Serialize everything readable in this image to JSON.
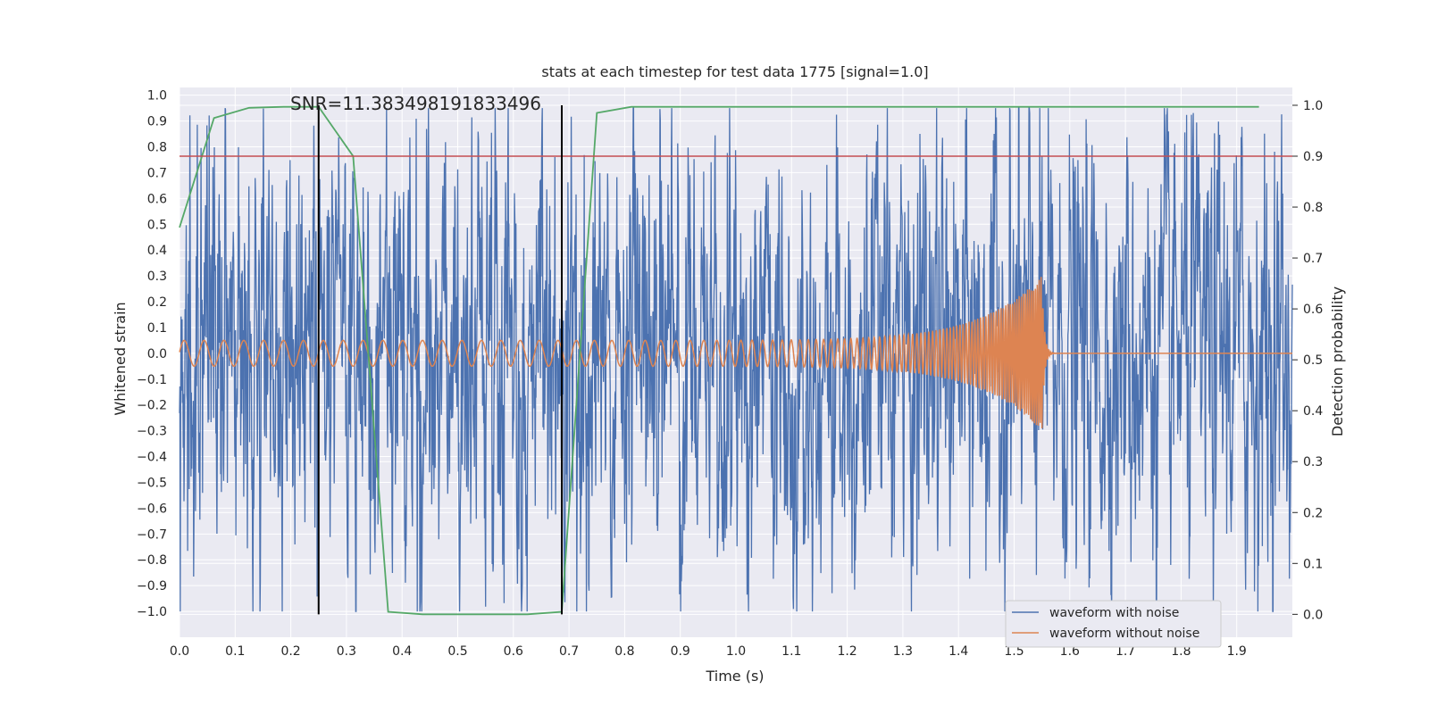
{
  "chart_data": {
    "type": "line",
    "title": "stats at each timestep for test data 1775 [signal=1.0]",
    "xlabel": "Time (s)",
    "ylabel": "Whitened strain",
    "y2label": "Detection probability",
    "xlim": [
      0.0,
      2.0
    ],
    "ylim": [
      -1.1,
      1.03
    ],
    "y2lim": [
      -0.045,
      1.035
    ],
    "xticks": [
      "0.0",
      "0.1",
      "0.2",
      "0.3",
      "0.4",
      "0.5",
      "0.6",
      "0.7",
      "0.8",
      "0.9",
      "1.0",
      "1.1",
      "1.2",
      "1.3",
      "1.4",
      "1.5",
      "1.6",
      "1.7",
      "1.8",
      "1.9"
    ],
    "yticks": [
      "1.0",
      "0.9",
      "0.8",
      "0.7",
      "0.6",
      "0.5",
      "0.4",
      "0.3",
      "0.2",
      "0.1",
      "0.0",
      "−0.1",
      "−0.2",
      "−0.3",
      "−0.4",
      "−0.5",
      "−0.6",
      "−0.7",
      "−0.8",
      "−0.9",
      "−1.0"
    ],
    "y2ticks": [
      "1.0",
      "0.9",
      "0.8",
      "0.7",
      "0.6",
      "0.5",
      "0.4",
      "0.3",
      "0.2",
      "0.1",
      "0.0"
    ],
    "grid": true,
    "legend_placement": "lower-right",
    "annotation": "SNR=11.383498191833496",
    "series": [
      {
        "name": "waveform with noise",
        "axis": "left",
        "color": "#4c72b0",
        "description": "noisy whitened strain, roughly uniform noise amplitude ~0.35 std, peaks near ±0.9"
      },
      {
        "name": "waveform without noise",
        "axis": "left",
        "color": "#dd8452",
        "chirp": {
          "start_freq_hz": 28,
          "end_freq_hz": 300,
          "merger_time": 1.55,
          "start_amp": 0.05,
          "peak_amp": 0.3
        }
      },
      {
        "axis": "right",
        "color": "#55a868",
        "x": [
          0.0,
          0.062,
          0.125,
          0.187,
          0.25,
          0.312,
          0.375,
          0.437,
          0.5,
          0.562,
          0.625,
          0.687,
          0.75,
          0.812,
          0.875,
          0.937,
          1.0,
          1.5,
          1.94
        ],
        "y": [
          0.76,
          0.975,
          0.995,
          0.997,
          0.997,
          0.9,
          0.005,
          0.0,
          0.0,
          0.0,
          0.0,
          0.005,
          0.985,
          0.997,
          0.997,
          0.997,
          0.997,
          0.997,
          0.997
        ]
      }
    ],
    "threshold": {
      "axis": "right",
      "value": 0.9,
      "color": "#c44e52"
    },
    "vlines": [
      0.25,
      0.687
    ],
    "colors": {
      "plot_bg": "#eaeaf2",
      "grid": "#ffffff",
      "vline": "#000000"
    }
  }
}
